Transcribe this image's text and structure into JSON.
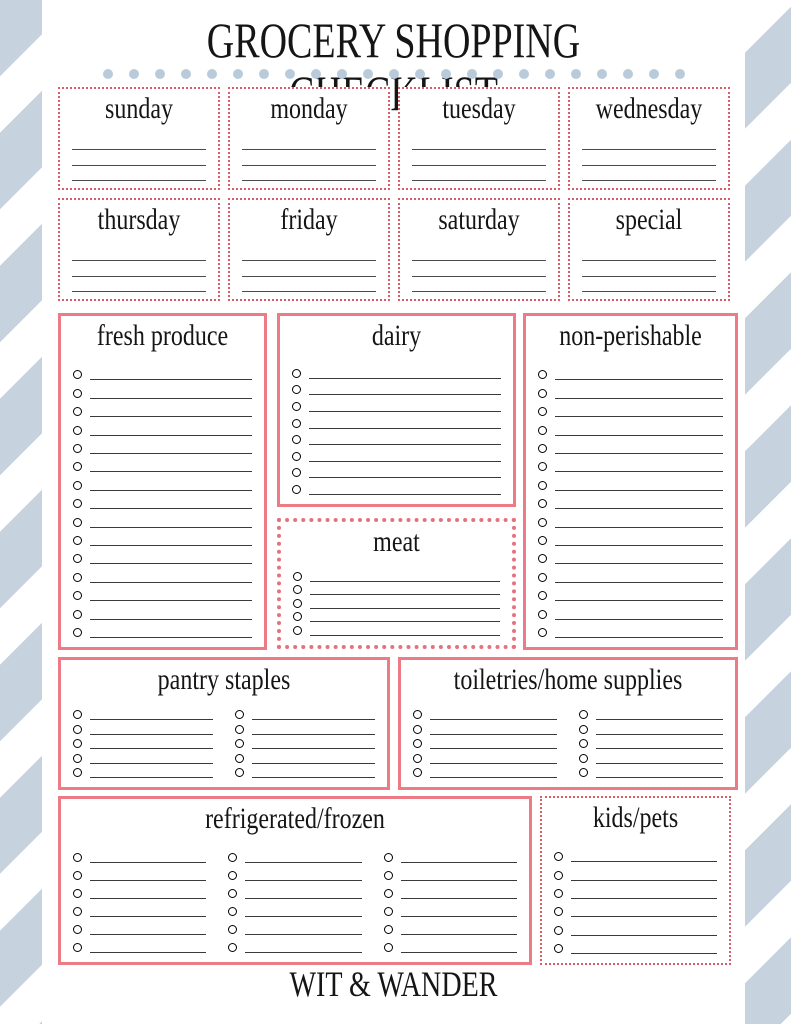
{
  "page": {
    "title": "GROCERY SHOPPING CHECKLIST",
    "footer": "WIT & WANDER"
  },
  "decoration": {
    "dot_row_count": 23
  },
  "colors": {
    "stripe_blue": "#c6d2de",
    "dot_blue": "#b9cbda",
    "solid_border_pink": "#ed7b85",
    "dotted_border_red": "#d95c68",
    "meat_dotted_border": "#e7717e",
    "text": "#151515"
  },
  "day_boxes": [
    {
      "label": "sunday",
      "lines": 3
    },
    {
      "label": "monday",
      "lines": 3
    },
    {
      "label": "tuesday",
      "lines": 3
    },
    {
      "label": "wednesday",
      "lines": 3
    },
    {
      "label": "thursday",
      "lines": 3
    },
    {
      "label": "friday",
      "lines": 3
    },
    {
      "label": "saturday",
      "lines": 3
    },
    {
      "label": "special",
      "lines": 3
    }
  ],
  "category_boxes": [
    {
      "label": "fresh produce",
      "rows": 15,
      "columns": 1,
      "border": "solid"
    },
    {
      "label": "dairy",
      "rows": 8,
      "columns": 1,
      "border": "solid"
    },
    {
      "label": "meat",
      "rows": 5,
      "columns": 1,
      "border": "dotted"
    },
    {
      "label": "non-perishable",
      "rows": 15,
      "columns": 1,
      "border": "solid"
    },
    {
      "label": "pantry staples",
      "rows": 5,
      "columns": 2,
      "border": "solid"
    },
    {
      "label": "toiletries/home supplies",
      "rows": 5,
      "columns": 2,
      "border": "solid"
    },
    {
      "label": "refrigerated/frozen",
      "rows": 6,
      "columns": 3,
      "border": "solid"
    },
    {
      "label": "kids/pets",
      "rows": 6,
      "columns": 1,
      "border": "dotted"
    }
  ]
}
